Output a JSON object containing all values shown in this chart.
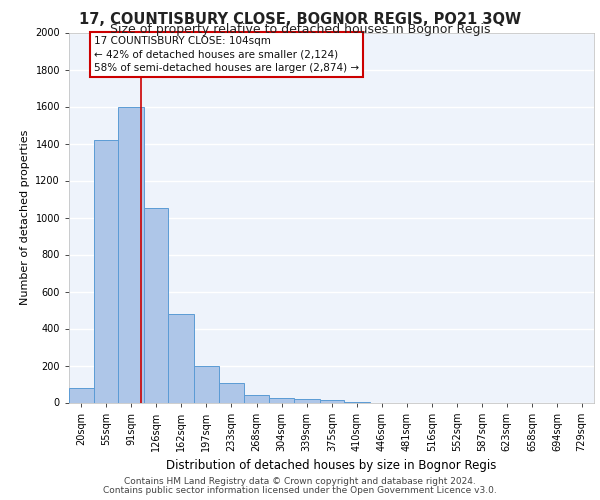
{
  "title1": "17, COUNTISBURY CLOSE, BOGNOR REGIS, PO21 3QW",
  "title2": "Size of property relative to detached houses in Bognor Regis",
  "xlabel": "Distribution of detached houses by size in Bognor Regis",
  "ylabel": "Number of detached properties",
  "bin_labels": [
    "20sqm",
    "55sqm",
    "91sqm",
    "126sqm",
    "162sqm",
    "197sqm",
    "233sqm",
    "268sqm",
    "304sqm",
    "339sqm",
    "375sqm",
    "410sqm",
    "446sqm",
    "481sqm",
    "516sqm",
    "552sqm",
    "587sqm",
    "623sqm",
    "658sqm",
    "694sqm",
    "729sqm"
  ],
  "bin_edges": [
    2.5,
    37.5,
    72.5,
    108.5,
    143.5,
    179.5,
    214.5,
    250.5,
    286.5,
    321.5,
    357.5,
    392.5,
    428.5,
    463.5,
    498.5,
    534.5,
    569.5,
    605.5,
    640.5,
    676.5,
    711.5,
    746.5
  ],
  "bin_counts": [
    80,
    1420,
    1600,
    1050,
    480,
    200,
    105,
    40,
    25,
    20,
    15,
    5,
    0,
    0,
    0,
    0,
    0,
    0,
    0,
    0,
    0
  ],
  "bar_color": "#aec6e8",
  "bar_edge_color": "#5b9bd5",
  "bg_color": "#eef3fb",
  "grid_color": "#ffffff",
  "vline_x": 104,
  "vline_color": "#cc0000",
  "annotation_line1": "17 COUNTISBURY CLOSE: 104sqm",
  "annotation_line2": "← 42% of detached houses are smaller (2,124)",
  "annotation_line3": "58% of semi-detached houses are larger (2,874) →",
  "annotation_box_color": "#ffffff",
  "annotation_box_edge": "#cc0000",
  "ylim": [
    0,
    2000
  ],
  "yticks": [
    0,
    200,
    400,
    600,
    800,
    1000,
    1200,
    1400,
    1600,
    1800,
    2000
  ],
  "footer_line1": "Contains HM Land Registry data © Crown copyright and database right 2024.",
  "footer_line2": "Contains public sector information licensed under the Open Government Licence v3.0.",
  "title1_fontsize": 10.5,
  "title2_fontsize": 9,
  "xlabel_fontsize": 8.5,
  "ylabel_fontsize": 8,
  "tick_fontsize": 7,
  "annotation_fontsize": 7.5,
  "footer_fontsize": 6.5
}
